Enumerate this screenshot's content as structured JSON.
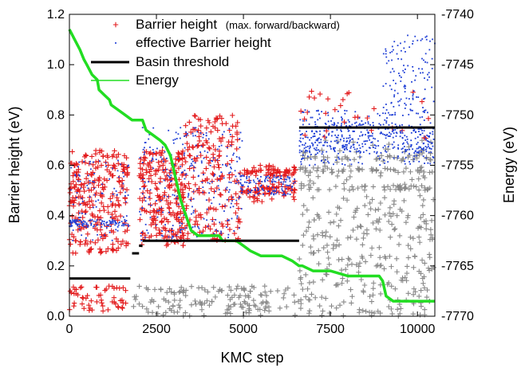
{
  "chart_data": {
    "type": "scatter",
    "xlabel": "KMC step",
    "ylabel": "Barrier height (eV)",
    "y2label": "Energy (eV)",
    "xlim": [
      0,
      10500
    ],
    "ylim": [
      0.0,
      1.2
    ],
    "y2lim": [
      -7770,
      -7740
    ],
    "xticks": [
      "0",
      "2500",
      "5000",
      "7500",
      "10000"
    ],
    "yticks": [
      "0.0",
      "0.2",
      "0.4",
      "0.6",
      "0.8",
      "1.0",
      "1.2"
    ],
    "y2ticks": [
      "-7770",
      "-7765",
      "-7760",
      "-7755",
      "-7750",
      "-7745",
      "-7740"
    ],
    "legend_position": "top-center",
    "legend": [
      {
        "label": "Barrier height",
        "sublabel": "(max. forward/backward)",
        "marker": "plus",
        "color": "#e31a1c"
      },
      {
        "label": "effective Barrier height",
        "sublabel": "",
        "marker": "dot",
        "color": "#1f3fd6"
      },
      {
        "label": "Basin threshold",
        "sublabel": "",
        "marker": "thick-line",
        "color": "#000000"
      },
      {
        "label": "Energy",
        "sublabel": "",
        "marker": "line",
        "color": "#22dd22"
      }
    ],
    "colors": {
      "barrier": "#e31a1c",
      "effective": "#1f3fd6",
      "threshold": "#000000",
      "energy": "#22dd22",
      "gray": "#888888"
    },
    "series": [
      {
        "name": "Basin threshold",
        "axis": "y1",
        "segments": [
          {
            "x": [
              0,
              1750
            ],
            "y": 0.15
          },
          {
            "x": [
              1800,
              2000
            ],
            "y": 0.25
          },
          {
            "x": [
              2000,
              2100
            ],
            "y": 0.28
          },
          {
            "x": [
              2100,
              6600
            ],
            "y": 0.3
          },
          {
            "x": [
              6600,
              10500
            ],
            "y": 0.75
          }
        ]
      },
      {
        "name": "Energy",
        "axis": "y2",
        "x": [
          0,
          150,
          300,
          420,
          500,
          650,
          800,
          850,
          1000,
          1150,
          1200,
          1400,
          1600,
          1800,
          1900,
          2100,
          2200,
          2400,
          2600,
          2750,
          2900,
          3000,
          3100,
          3200,
          3300,
          3400,
          3500,
          3700,
          4000,
          4300,
          4400,
          4600,
          4800,
          5000,
          5200,
          5500,
          5800,
          6100,
          6400,
          6600,
          6700,
          7000,
          7500,
          8000,
          8500,
          8900,
          9000,
          9100,
          9300,
          9700,
          10500
        ],
        "y": [
          -7741.5,
          -7742.5,
          -7743.5,
          -7744.5,
          -7745,
          -7746,
          -7746.5,
          -7747.5,
          -7748,
          -7748.5,
          -7749,
          -7749.5,
          -7750,
          -7750.5,
          -7750.5,
          -7750.5,
          -7751.5,
          -7752,
          -7752.5,
          -7753,
          -7754,
          -7755.5,
          -7757,
          -7758.5,
          -7759.5,
          -7760.5,
          -7761.5,
          -7762,
          -7762,
          -7762,
          -7762.5,
          -7762.5,
          -7762.5,
          -7763,
          -7763.5,
          -7764,
          -7764,
          -7764,
          -7764.5,
          -7765,
          -7765,
          -7765.5,
          -7765.5,
          -7766,
          -7766,
          -7766,
          -7766.5,
          -7768,
          -7768.5,
          -7768.5,
          -7768.5
        ]
      },
      {
        "name": "Barrier height",
        "axis": "y1",
        "clusters": [
          {
            "x": [
              0,
              1700
            ],
            "y": [
              0.25,
              0.66
            ],
            "count": 260
          },
          {
            "x": [
              0,
              1700
            ],
            "y": [
              0.02,
              0.12
            ],
            "count": 55
          },
          {
            "x": [
              2000,
              3300
            ],
            "y": [
              0.28,
              0.66
            ],
            "count": 230
          },
          {
            "x": [
              3300,
              4900
            ],
            "y": [
              0.3,
              0.8
            ],
            "count": 190
          },
          {
            "x": [
              4900,
              6500
            ],
            "y": [
              0.45,
              0.6
            ],
            "count": 140
          },
          {
            "x": [
              6600,
              10500
            ],
            "y": [
              0.7,
              0.9
            ],
            "count": 30
          }
        ]
      },
      {
        "name": "effective Barrier height",
        "axis": "y1",
        "clusters": [
          {
            "x": [
              0,
              1700
            ],
            "y": [
              0.3,
              0.62
            ],
            "count": 200
          },
          {
            "x": [
              2000,
              5000
            ],
            "y": [
              0.3,
              0.75
            ],
            "count": 300
          },
          {
            "x": [
              4900,
              6500
            ],
            "y": [
              0.48,
              0.56
            ],
            "count": 120
          },
          {
            "x": [
              6600,
              10500
            ],
            "y": [
              0.6,
              0.82
            ],
            "count": 520
          },
          {
            "x": [
              9000,
              10500
            ],
            "y": [
              0.8,
              1.12
            ],
            "count": 120
          }
        ]
      },
      {
        "name": "",
        "axis": "y1",
        "clusters": [
          {
            "x": [
              1800,
              6600
            ],
            "y": [
              0.0,
              0.12
            ],
            "count": 150
          },
          {
            "x": [
              6600,
              10500
            ],
            "y": [
              0.0,
              0.48
            ],
            "count": 280
          },
          {
            "x": [
              6600,
              10500
            ],
            "y": [
              0.5,
              0.7
            ],
            "count": 180
          }
        ]
      }
    ]
  }
}
